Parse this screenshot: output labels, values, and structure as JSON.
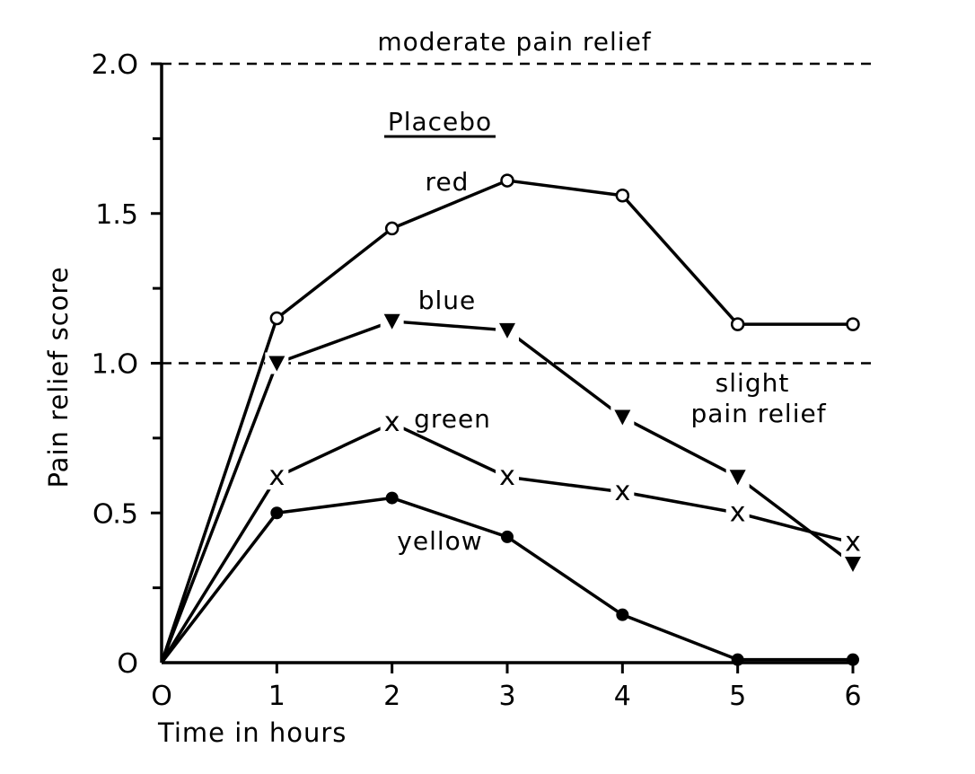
{
  "chart_data": {
    "type": "line",
    "title": "Placebo",
    "xlabel": "Time in hours",
    "ylabel": "Pain relief score",
    "x": [
      0,
      1,
      2,
      3,
      4,
      5,
      6
    ],
    "xticks": [
      "O",
      "1",
      "2",
      "3",
      "4",
      "5",
      "6"
    ],
    "yticks": [
      {
        "value": 0,
        "label": "O"
      },
      {
        "value": 0.5,
        "label": "O.5"
      },
      {
        "value": 1.0,
        "label": "1.O"
      },
      {
        "value": 1.5,
        "label": "1.5"
      },
      {
        "value": 2.0,
        "label": "2.O"
      }
    ],
    "xlim": [
      0,
      6
    ],
    "ylim": [
      0,
      2.0
    ],
    "grid": false,
    "reference_lines": [
      {
        "y": 2.0,
        "label": "moderate pain relief"
      },
      {
        "y": 1.0,
        "label": "slight pain relief"
      }
    ],
    "series": [
      {
        "name": "red",
        "marker": "open-circle",
        "values": [
          0,
          1.15,
          1.45,
          1.61,
          1.56,
          1.13,
          1.13
        ]
      },
      {
        "name": "blue",
        "marker": "filled-triangle-down",
        "values": [
          0,
          1.0,
          1.14,
          1.11,
          0.82,
          0.62,
          0.33
        ]
      },
      {
        "name": "green",
        "marker": "x",
        "values": [
          0,
          0.62,
          0.8,
          0.62,
          0.57,
          0.5,
          0.4
        ]
      },
      {
        "name": "yellow",
        "marker": "filled-circle",
        "values": [
          0,
          0.5,
          0.55,
          0.42,
          0.16,
          0.01,
          0.01
        ]
      }
    ]
  }
}
